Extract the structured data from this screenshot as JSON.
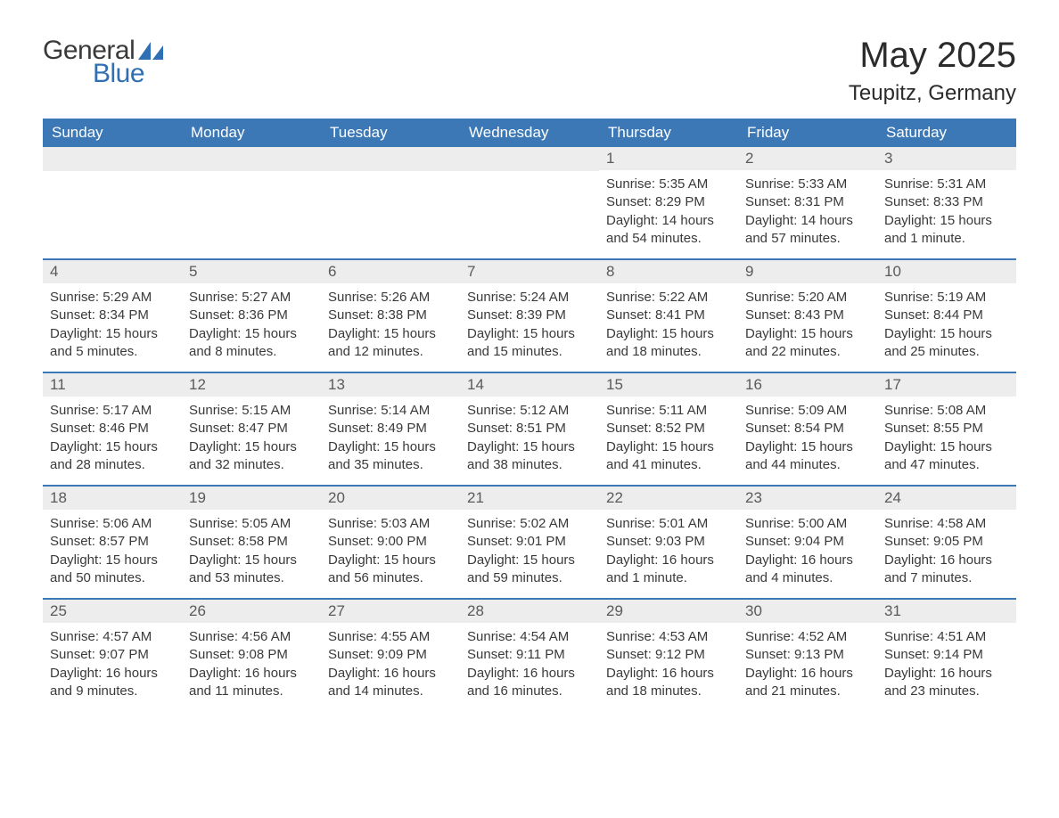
{
  "logo": {
    "general": "General",
    "blue": "Blue"
  },
  "title": "May 2025",
  "location": "Teupitz, Germany",
  "colors": {
    "header_bg": "#3b78b5",
    "header_text": "#ffffff",
    "daynum_bg": "#ededed",
    "daynum_text": "#5a5a5a",
    "body_text": "#3a3a3a",
    "rule": "#3b78b5",
    "logo_blue": "#2f6fb3",
    "logo_gray": "#3a3a3a",
    "page_bg": "#ffffff"
  },
  "typography": {
    "title_fontsize": 40,
    "location_fontsize": 24,
    "dayheader_fontsize": 17,
    "daynum_fontsize": 17,
    "body_fontsize": 15,
    "logo_fontsize": 30
  },
  "day_names": [
    "Sunday",
    "Monday",
    "Tuesday",
    "Wednesday",
    "Thursday",
    "Friday",
    "Saturday"
  ],
  "weeks": [
    [
      {
        "day": null
      },
      {
        "day": null
      },
      {
        "day": null
      },
      {
        "day": null
      },
      {
        "day": "1",
        "sunrise": "Sunrise: 5:35 AM",
        "sunset": "Sunset: 8:29 PM",
        "daylight1": "Daylight: 14 hours",
        "daylight2": "and 54 minutes."
      },
      {
        "day": "2",
        "sunrise": "Sunrise: 5:33 AM",
        "sunset": "Sunset: 8:31 PM",
        "daylight1": "Daylight: 14 hours",
        "daylight2": "and 57 minutes."
      },
      {
        "day": "3",
        "sunrise": "Sunrise: 5:31 AM",
        "sunset": "Sunset: 8:33 PM",
        "daylight1": "Daylight: 15 hours",
        "daylight2": "and 1 minute."
      }
    ],
    [
      {
        "day": "4",
        "sunrise": "Sunrise: 5:29 AM",
        "sunset": "Sunset: 8:34 PM",
        "daylight1": "Daylight: 15 hours",
        "daylight2": "and 5 minutes."
      },
      {
        "day": "5",
        "sunrise": "Sunrise: 5:27 AM",
        "sunset": "Sunset: 8:36 PM",
        "daylight1": "Daylight: 15 hours",
        "daylight2": "and 8 minutes."
      },
      {
        "day": "6",
        "sunrise": "Sunrise: 5:26 AM",
        "sunset": "Sunset: 8:38 PM",
        "daylight1": "Daylight: 15 hours",
        "daylight2": "and 12 minutes."
      },
      {
        "day": "7",
        "sunrise": "Sunrise: 5:24 AM",
        "sunset": "Sunset: 8:39 PM",
        "daylight1": "Daylight: 15 hours",
        "daylight2": "and 15 minutes."
      },
      {
        "day": "8",
        "sunrise": "Sunrise: 5:22 AM",
        "sunset": "Sunset: 8:41 PM",
        "daylight1": "Daylight: 15 hours",
        "daylight2": "and 18 minutes."
      },
      {
        "day": "9",
        "sunrise": "Sunrise: 5:20 AM",
        "sunset": "Sunset: 8:43 PM",
        "daylight1": "Daylight: 15 hours",
        "daylight2": "and 22 minutes."
      },
      {
        "day": "10",
        "sunrise": "Sunrise: 5:19 AM",
        "sunset": "Sunset: 8:44 PM",
        "daylight1": "Daylight: 15 hours",
        "daylight2": "and 25 minutes."
      }
    ],
    [
      {
        "day": "11",
        "sunrise": "Sunrise: 5:17 AM",
        "sunset": "Sunset: 8:46 PM",
        "daylight1": "Daylight: 15 hours",
        "daylight2": "and 28 minutes."
      },
      {
        "day": "12",
        "sunrise": "Sunrise: 5:15 AM",
        "sunset": "Sunset: 8:47 PM",
        "daylight1": "Daylight: 15 hours",
        "daylight2": "and 32 minutes."
      },
      {
        "day": "13",
        "sunrise": "Sunrise: 5:14 AM",
        "sunset": "Sunset: 8:49 PM",
        "daylight1": "Daylight: 15 hours",
        "daylight2": "and 35 minutes."
      },
      {
        "day": "14",
        "sunrise": "Sunrise: 5:12 AM",
        "sunset": "Sunset: 8:51 PM",
        "daylight1": "Daylight: 15 hours",
        "daylight2": "and 38 minutes."
      },
      {
        "day": "15",
        "sunrise": "Sunrise: 5:11 AM",
        "sunset": "Sunset: 8:52 PM",
        "daylight1": "Daylight: 15 hours",
        "daylight2": "and 41 minutes."
      },
      {
        "day": "16",
        "sunrise": "Sunrise: 5:09 AM",
        "sunset": "Sunset: 8:54 PM",
        "daylight1": "Daylight: 15 hours",
        "daylight2": "and 44 minutes."
      },
      {
        "day": "17",
        "sunrise": "Sunrise: 5:08 AM",
        "sunset": "Sunset: 8:55 PM",
        "daylight1": "Daylight: 15 hours",
        "daylight2": "and 47 minutes."
      }
    ],
    [
      {
        "day": "18",
        "sunrise": "Sunrise: 5:06 AM",
        "sunset": "Sunset: 8:57 PM",
        "daylight1": "Daylight: 15 hours",
        "daylight2": "and 50 minutes."
      },
      {
        "day": "19",
        "sunrise": "Sunrise: 5:05 AM",
        "sunset": "Sunset: 8:58 PM",
        "daylight1": "Daylight: 15 hours",
        "daylight2": "and 53 minutes."
      },
      {
        "day": "20",
        "sunrise": "Sunrise: 5:03 AM",
        "sunset": "Sunset: 9:00 PM",
        "daylight1": "Daylight: 15 hours",
        "daylight2": "and 56 minutes."
      },
      {
        "day": "21",
        "sunrise": "Sunrise: 5:02 AM",
        "sunset": "Sunset: 9:01 PM",
        "daylight1": "Daylight: 15 hours",
        "daylight2": "and 59 minutes."
      },
      {
        "day": "22",
        "sunrise": "Sunrise: 5:01 AM",
        "sunset": "Sunset: 9:03 PM",
        "daylight1": "Daylight: 16 hours",
        "daylight2": "and 1 minute."
      },
      {
        "day": "23",
        "sunrise": "Sunrise: 5:00 AM",
        "sunset": "Sunset: 9:04 PM",
        "daylight1": "Daylight: 16 hours",
        "daylight2": "and 4 minutes."
      },
      {
        "day": "24",
        "sunrise": "Sunrise: 4:58 AM",
        "sunset": "Sunset: 9:05 PM",
        "daylight1": "Daylight: 16 hours",
        "daylight2": "and 7 minutes."
      }
    ],
    [
      {
        "day": "25",
        "sunrise": "Sunrise: 4:57 AM",
        "sunset": "Sunset: 9:07 PM",
        "daylight1": "Daylight: 16 hours",
        "daylight2": "and 9 minutes."
      },
      {
        "day": "26",
        "sunrise": "Sunrise: 4:56 AM",
        "sunset": "Sunset: 9:08 PM",
        "daylight1": "Daylight: 16 hours",
        "daylight2": "and 11 minutes."
      },
      {
        "day": "27",
        "sunrise": "Sunrise: 4:55 AM",
        "sunset": "Sunset: 9:09 PM",
        "daylight1": "Daylight: 16 hours",
        "daylight2": "and 14 minutes."
      },
      {
        "day": "28",
        "sunrise": "Sunrise: 4:54 AM",
        "sunset": "Sunset: 9:11 PM",
        "daylight1": "Daylight: 16 hours",
        "daylight2": "and 16 minutes."
      },
      {
        "day": "29",
        "sunrise": "Sunrise: 4:53 AM",
        "sunset": "Sunset: 9:12 PM",
        "daylight1": "Daylight: 16 hours",
        "daylight2": "and 18 minutes."
      },
      {
        "day": "30",
        "sunrise": "Sunrise: 4:52 AM",
        "sunset": "Sunset: 9:13 PM",
        "daylight1": "Daylight: 16 hours",
        "daylight2": "and 21 minutes."
      },
      {
        "day": "31",
        "sunrise": "Sunrise: 4:51 AM",
        "sunset": "Sunset: 9:14 PM",
        "daylight1": "Daylight: 16 hours",
        "daylight2": "and 23 minutes."
      }
    ]
  ]
}
